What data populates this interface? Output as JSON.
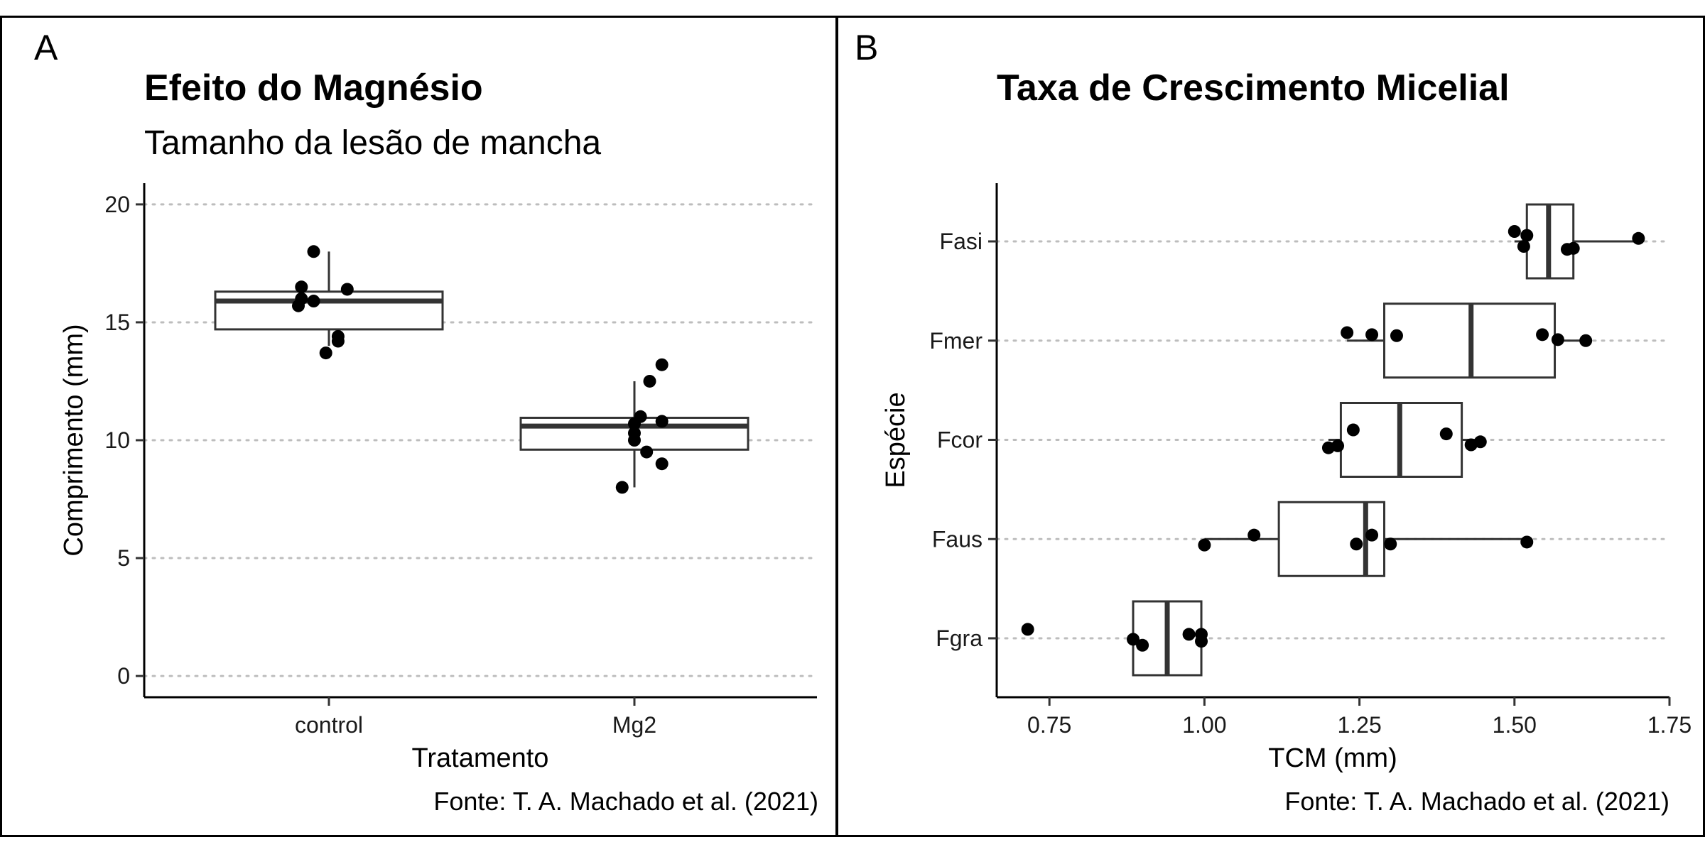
{
  "panel_a": {
    "tag": "A",
    "title": "Efeito do Magnésio",
    "subtitle": "Tamanho da lesão de mancha",
    "caption": "Fonte: T. A. Machado et al. (2021)"
  },
  "panel_b": {
    "tag": "B",
    "title": "Taxa de Crescimento Micelial",
    "caption": "Fonte: T. A. Machado et al. (2021)"
  },
  "chart_data": [
    {
      "type": "boxplot",
      "orientation": "vertical",
      "title": "Efeito do Magnésio",
      "subtitle": "Tamanho da lesão de mancha",
      "xlabel": "Tratamento",
      "ylabel": "Comprimento (mm)",
      "ylim": [
        -0.9,
        20.9
      ],
      "yticks": [
        0,
        5,
        10,
        15,
        20
      ],
      "grid": "horizontal-dotted",
      "categories": [
        "control",
        "Mg2"
      ],
      "boxes": [
        {
          "category": "control",
          "min": 14.0,
          "q1": 14.7,
          "median": 15.9,
          "q3": 16.3,
          "max": 18.0
        },
        {
          "category": "Mg2",
          "min": 8.0,
          "q1": 9.6,
          "median": 10.6,
          "q3": 10.95,
          "max": 12.5
        }
      ],
      "points": [
        {
          "category": "control",
          "x": -0.05,
          "y": 18.0
        },
        {
          "category": "control",
          "x": -0.09,
          "y": 16.5
        },
        {
          "category": "control",
          "x": 0.06,
          "y": 16.4
        },
        {
          "category": "control",
          "x": -0.09,
          "y": 16.0
        },
        {
          "category": "control",
          "x": -0.05,
          "y": 15.9
        },
        {
          "category": "control",
          "x": -0.1,
          "y": 15.7
        },
        {
          "category": "control",
          "x": 0.03,
          "y": 14.4
        },
        {
          "category": "control",
          "x": 0.03,
          "y": 14.2
        },
        {
          "category": "control",
          "x": -0.01,
          "y": 13.7
        },
        {
          "category": "Mg2",
          "x": 0.09,
          "y": 13.2
        },
        {
          "category": "Mg2",
          "x": 0.05,
          "y": 12.5
        },
        {
          "category": "Mg2",
          "x": 0.02,
          "y": 11.0
        },
        {
          "category": "Mg2",
          "x": 0.09,
          "y": 10.8
        },
        {
          "category": "Mg2",
          "x": 0.0,
          "y": 10.7
        },
        {
          "category": "Mg2",
          "x": 0.0,
          "y": 10.3
        },
        {
          "category": "Mg2",
          "x": 0.0,
          "y": 10.0
        },
        {
          "category": "Mg2",
          "x": 0.04,
          "y": 9.5
        },
        {
          "category": "Mg2",
          "x": 0.09,
          "y": 9.0
        },
        {
          "category": "Mg2",
          "x": -0.04,
          "y": 8.0
        }
      ]
    },
    {
      "type": "boxplot",
      "orientation": "horizontal",
      "title": "Taxa de Crescimento Micelial",
      "xlabel": "TCM (mm)",
      "ylabel": "Espécie",
      "xlim": [
        0.665,
        1.75
      ],
      "xticks": [
        "0.75",
        "1.00",
        "1.25",
        "1.50",
        "1.75"
      ],
      "grid": "horizontal-dotted",
      "categories": [
        "Fgra",
        "Faus",
        "Fcor",
        "Fmer",
        "Fasi"
      ],
      "boxes": [
        {
          "category": "Fgra",
          "min": 0.885,
          "q1": 0.885,
          "median": 0.94,
          "q3": 0.995,
          "max": 0.995
        },
        {
          "category": "Faus",
          "min": 1.0,
          "q1": 1.12,
          "median": 1.26,
          "q3": 1.29,
          "max": 1.52
        },
        {
          "category": "Fcor",
          "min": 1.2,
          "q1": 1.22,
          "median": 1.315,
          "q3": 1.415,
          "max": 1.45
        },
        {
          "category": "Fmer",
          "min": 1.23,
          "q1": 1.29,
          "median": 1.43,
          "q3": 1.565,
          "max": 1.62
        },
        {
          "category": "Fasi",
          "min": 1.5,
          "q1": 1.52,
          "median": 1.555,
          "q3": 1.595,
          "max": 1.7
        }
      ],
      "points": [
        {
          "category": "Fgra",
          "x": 0.715,
          "y": 0.09
        },
        {
          "category": "Fgra",
          "x": 0.885,
          "y": -0.01
        },
        {
          "category": "Fgra",
          "x": 0.9,
          "y": -0.07
        },
        {
          "category": "Fgra",
          "x": 0.975,
          "y": 0.04
        },
        {
          "category": "Fgra",
          "x": 0.995,
          "y": 0.04
        },
        {
          "category": "Fgra",
          "x": 0.995,
          "y": -0.03
        },
        {
          "category": "Faus",
          "x": 1.0,
          "y": -0.06
        },
        {
          "category": "Faus",
          "x": 1.08,
          "y": 0.04
        },
        {
          "category": "Faus",
          "x": 1.245,
          "y": -0.05
        },
        {
          "category": "Faus",
          "x": 1.27,
          "y": 0.04
        },
        {
          "category": "Faus",
          "x": 1.3,
          "y": -0.05
        },
        {
          "category": "Faus",
          "x": 1.52,
          "y": -0.03
        },
        {
          "category": "Fcor",
          "x": 1.2,
          "y": -0.08
        },
        {
          "category": "Fcor",
          "x": 1.215,
          "y": -0.06
        },
        {
          "category": "Fcor",
          "x": 1.24,
          "y": 0.1
        },
        {
          "category": "Fcor",
          "x": 1.39,
          "y": 0.06
        },
        {
          "category": "Fcor",
          "x": 1.43,
          "y": -0.05
        },
        {
          "category": "Fcor",
          "x": 1.445,
          "y": -0.02
        },
        {
          "category": "Fmer",
          "x": 1.23,
          "y": 0.08
        },
        {
          "category": "Fmer",
          "x": 1.27,
          "y": 0.06
        },
        {
          "category": "Fmer",
          "x": 1.31,
          "y": 0.05
        },
        {
          "category": "Fmer",
          "x": 1.545,
          "y": 0.06
        },
        {
          "category": "Fmer",
          "x": 1.57,
          "y": 0.01
        },
        {
          "category": "Fmer",
          "x": 1.615,
          "y": 0.0
        },
        {
          "category": "Fasi",
          "x": 1.5,
          "y": 0.1
        },
        {
          "category": "Fasi",
          "x": 1.52,
          "y": 0.06
        },
        {
          "category": "Fasi",
          "x": 1.515,
          "y": -0.05
        },
        {
          "category": "Fasi",
          "x": 1.585,
          "y": -0.08
        },
        {
          "category": "Fasi",
          "x": 1.595,
          "y": -0.07
        },
        {
          "category": "Fasi",
          "x": 1.7,
          "y": 0.03
        }
      ]
    }
  ]
}
